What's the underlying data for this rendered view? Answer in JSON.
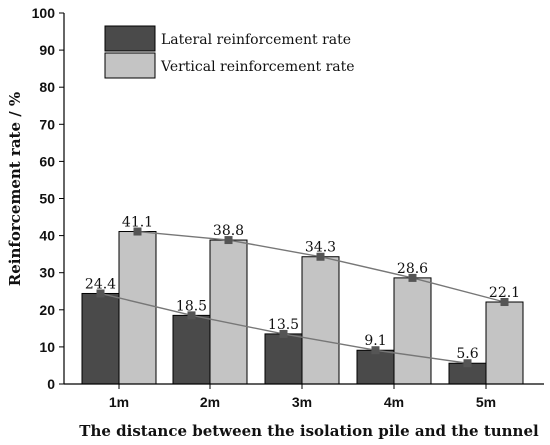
{
  "chart_data": {
    "type": "bar",
    "categories": [
      "1m",
      "2m",
      "3m",
      "4m",
      "5m"
    ],
    "series": [
      {
        "name": "Lateral reinforcement rate",
        "values": [
          24.4,
          18.5,
          13.5,
          9.1,
          5.6
        ],
        "color": "#4a4a4a"
      },
      {
        "name": "Vertical reinforcement rate",
        "values": [
          41.1,
          38.8,
          34.3,
          28.6,
          22.1
        ],
        "color": "#c4c4c4"
      }
    ],
    "data_labels": {
      "lateral": [
        "24.4",
        "18.5",
        "13.5",
        "9.1",
        "5.6"
      ],
      "vertical": [
        "41.1",
        "38.8",
        "34.3",
        "28.6",
        "22.1"
      ]
    },
    "y_ticks": [
      "0",
      "10",
      "20",
      "30",
      "40",
      "50",
      "60",
      "70",
      "80",
      "90",
      "100"
    ],
    "xlabel": "The distance between the isolation pile and the tunnel",
    "ylabel": "Reinforcement rate / %",
    "ylim": [
      0,
      100
    ],
    "error_bar": 0.6,
    "trend_lines": true,
    "legend_position": "top-left",
    "line_color": "#777777",
    "marker_color": "#555555"
  }
}
